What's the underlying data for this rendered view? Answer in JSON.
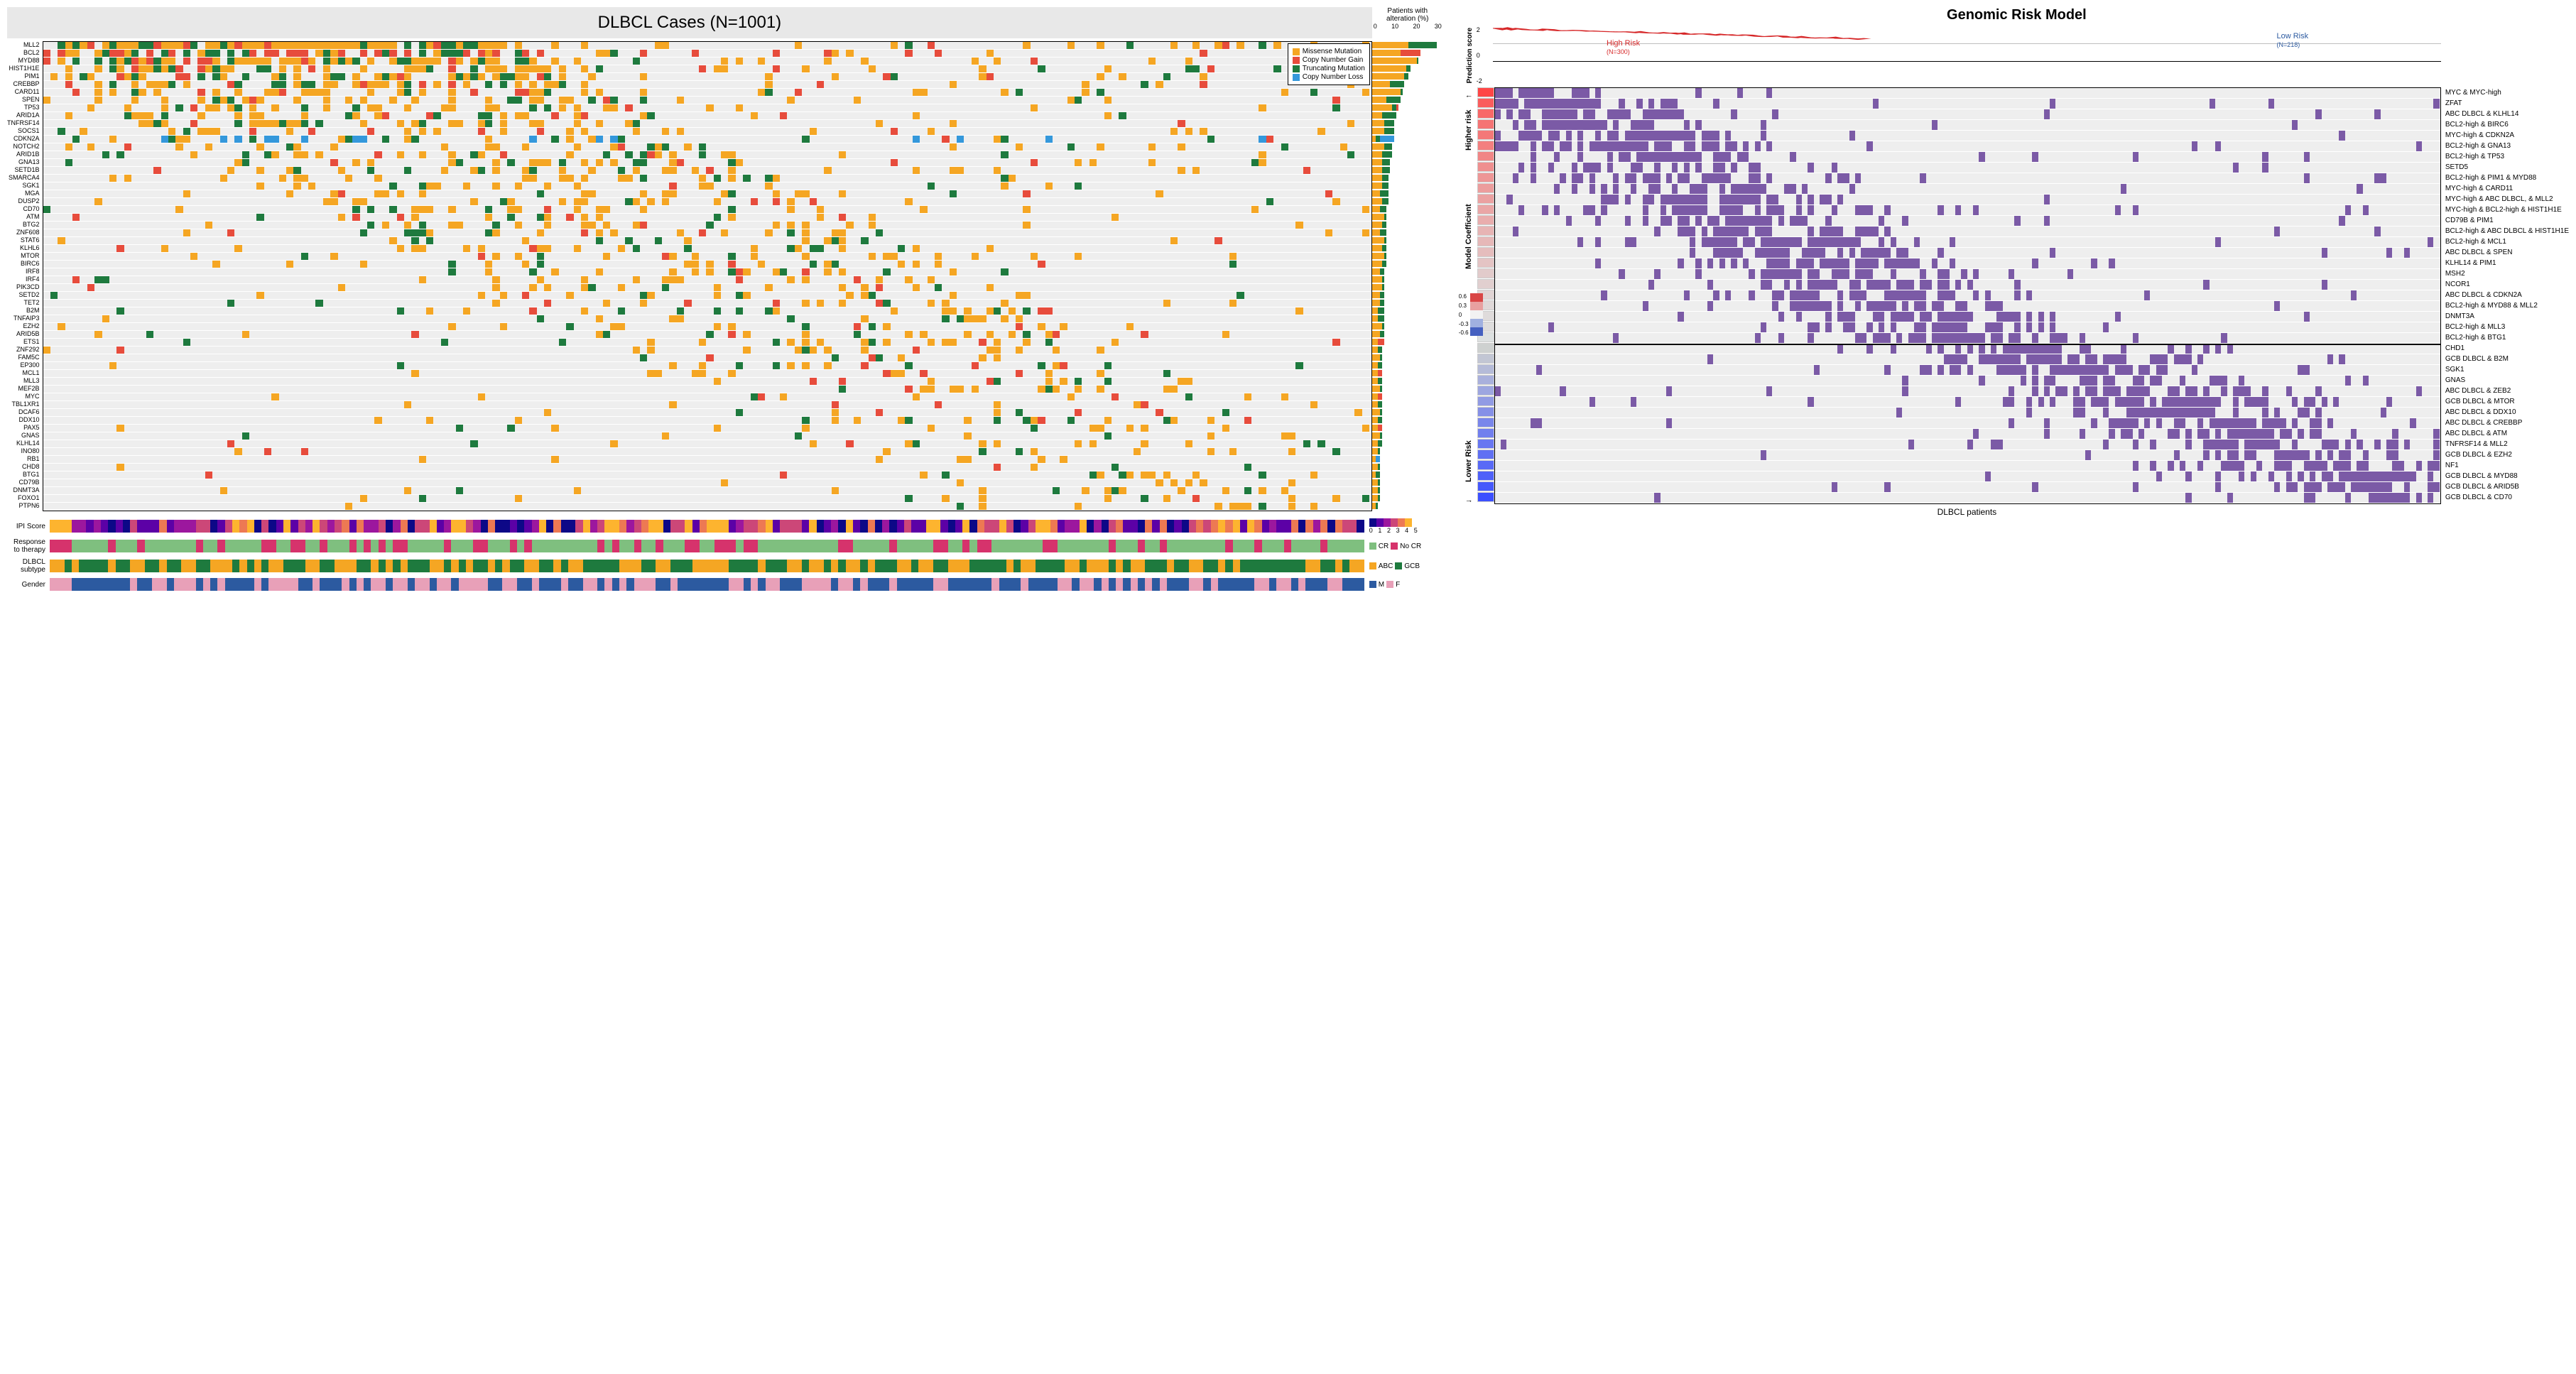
{
  "left": {
    "title": "DLBCL Cases (N=1001)",
    "genes": [
      "MLL2",
      "BCL2",
      "MYD88",
      "HIST1H1E",
      "PIM1",
      "CREBBP",
      "CARD11",
      "SPEN",
      "TP53",
      "ARID1A",
      "TNFRSF14",
      "SOCS1",
      "CDKN2A",
      "NOTCH2",
      "ARID1B",
      "GNA13",
      "SETD1B",
      "SMARCA4",
      "SGK1",
      "MGA",
      "DUSP2",
      "CD70",
      "ATM",
      "BTG2",
      "ZNF608",
      "STAT6",
      "KLHL6",
      "MTOR",
      "BIRC6",
      "IRF8",
      "IRF4",
      "PIK3CD",
      "SETD2",
      "TET2",
      "B2M",
      "TNFAIP3",
      "EZH2",
      "ARID5B",
      "ETS1",
      "ZNF292",
      "FAM5C",
      "EP300",
      "MCL1",
      "MLL3",
      "MEF2B",
      "MYC",
      "TBL1XR1",
      "DCAF6",
      "DDX10",
      "PAX5",
      "GNAS",
      "KLHL14",
      "INO80",
      "RB1",
      "CHD8",
      "BTG1",
      "CD79B",
      "DNMT3A",
      "FOXO1",
      "PTPN6"
    ],
    "legend": {
      "missense": {
        "label": "Missense Mutation",
        "color": "#f5a623"
      },
      "cngain": {
        "label": "Copy Number Gain",
        "color": "#e74c3c"
      },
      "trunc": {
        "label": "Truncating Mutation",
        "color": "#1e7a3e"
      },
      "cnloss": {
        "label": "Copy Number Loss",
        "color": "#3498db"
      }
    },
    "pct_header": "Patients with alteration (%)",
    "pct_ticks": [
      "0",
      "10",
      "20",
      "30"
    ],
    "pct_max": 35,
    "pct_data": [
      {
        "missense": 18,
        "trunc": 14,
        "cnloss": 0,
        "cngain": 0
      },
      {
        "missense": 14,
        "trunc": 0,
        "cnloss": 0,
        "cngain": 10
      },
      {
        "missense": 22,
        "trunc": 1,
        "cnloss": 0,
        "cngain": 0
      },
      {
        "missense": 17,
        "trunc": 2,
        "cnloss": 0,
        "cngain": 0
      },
      {
        "missense": 16,
        "trunc": 2,
        "cnloss": 0,
        "cngain": 0
      },
      {
        "missense": 9,
        "trunc": 7,
        "cnloss": 0,
        "cngain": 0
      },
      {
        "missense": 14,
        "trunc": 1,
        "cnloss": 0,
        "cngain": 0
      },
      {
        "missense": 7,
        "trunc": 7,
        "cnloss": 0,
        "cngain": 0
      },
      {
        "missense": 10,
        "trunc": 2,
        "cnloss": 0,
        "cngain": 1
      },
      {
        "missense": 5,
        "trunc": 7,
        "cnloss": 0,
        "cngain": 0
      },
      {
        "missense": 6,
        "trunc": 5,
        "cnloss": 0,
        "cngain": 0
      },
      {
        "missense": 6,
        "trunc": 5,
        "cnloss": 0,
        "cngain": 0
      },
      {
        "missense": 2,
        "trunc": 2,
        "cnloss": 7,
        "cngain": 0
      },
      {
        "missense": 6,
        "trunc": 4,
        "cnloss": 0,
        "cngain": 0
      },
      {
        "missense": 5,
        "trunc": 5,
        "cnloss": 0,
        "cngain": 0
      },
      {
        "missense": 5,
        "trunc": 4,
        "cnloss": 0,
        "cngain": 0
      },
      {
        "missense": 5,
        "trunc": 4,
        "cnloss": 0,
        "cngain": 0
      },
      {
        "missense": 5,
        "trunc": 3,
        "cnloss": 0,
        "cngain": 0
      },
      {
        "missense": 5,
        "trunc": 3,
        "cnloss": 0,
        "cngain": 0
      },
      {
        "missense": 4,
        "trunc": 4,
        "cnloss": 0,
        "cngain": 0
      },
      {
        "missense": 5,
        "trunc": 3,
        "cnloss": 0,
        "cngain": 0
      },
      {
        "missense": 4,
        "trunc": 3,
        "cnloss": 0,
        "cngain": 0
      },
      {
        "missense": 6,
        "trunc": 1,
        "cnloss": 0,
        "cngain": 0
      },
      {
        "missense": 5,
        "trunc": 2,
        "cnloss": 0,
        "cngain": 0
      },
      {
        "missense": 4,
        "trunc": 3,
        "cnloss": 0,
        "cngain": 0
      },
      {
        "missense": 6,
        "trunc": 1,
        "cnloss": 0,
        "cngain": 0
      },
      {
        "missense": 5,
        "trunc": 2,
        "cnloss": 0,
        "cngain": 0
      },
      {
        "missense": 6,
        "trunc": 1,
        "cnloss": 0,
        "cngain": 0
      },
      {
        "missense": 5,
        "trunc": 2,
        "cnloss": 0,
        "cngain": 0
      },
      {
        "missense": 4,
        "trunc": 2,
        "cnloss": 0,
        "cngain": 0
      },
      {
        "missense": 5,
        "trunc": 1,
        "cnloss": 0,
        "cngain": 0
      },
      {
        "missense": 5,
        "trunc": 1,
        "cnloss": 0,
        "cngain": 0
      },
      {
        "missense": 4,
        "trunc": 2,
        "cnloss": 0,
        "cngain": 0
      },
      {
        "missense": 4,
        "trunc": 2,
        "cnloss": 0,
        "cngain": 0
      },
      {
        "missense": 3,
        "trunc": 3,
        "cnloss": 0,
        "cngain": 0
      },
      {
        "missense": 3,
        "trunc": 3,
        "cnloss": 0,
        "cngain": 0
      },
      {
        "missense": 5,
        "trunc": 1,
        "cnloss": 0,
        "cngain": 0
      },
      {
        "missense": 4,
        "trunc": 2,
        "cnloss": 0,
        "cngain": 0
      },
      {
        "missense": 3,
        "trunc": 0,
        "cnloss": 0,
        "cngain": 3
      },
      {
        "missense": 3,
        "trunc": 2,
        "cnloss": 0,
        "cngain": 0
      },
      {
        "missense": 4,
        "trunc": 1,
        "cnloss": 0,
        "cngain": 0
      },
      {
        "missense": 3,
        "trunc": 2,
        "cnloss": 0,
        "cngain": 0
      },
      {
        "missense": 3,
        "trunc": 0,
        "cnloss": 0,
        "cngain": 2
      },
      {
        "missense": 3,
        "trunc": 2,
        "cnloss": 0,
        "cngain": 0
      },
      {
        "missense": 4,
        "trunc": 1,
        "cnloss": 0,
        "cngain": 0
      },
      {
        "missense": 3,
        "trunc": 0,
        "cnloss": 0,
        "cngain": 2
      },
      {
        "missense": 3,
        "trunc": 2,
        "cnloss": 0,
        "cngain": 0
      },
      {
        "missense": 4,
        "trunc": 1,
        "cnloss": 0,
        "cngain": 0
      },
      {
        "missense": 3,
        "trunc": 2,
        "cnloss": 0,
        "cngain": 0
      },
      {
        "missense": 3,
        "trunc": 0,
        "cnloss": 0,
        "cngain": 2
      },
      {
        "missense": 4,
        "trunc": 1,
        "cnloss": 0,
        "cngain": 0
      },
      {
        "missense": 3,
        "trunc": 2,
        "cnloss": 0,
        "cngain": 0
      },
      {
        "missense": 3,
        "trunc": 1,
        "cnloss": 0,
        "cngain": 0
      },
      {
        "missense": 2,
        "trunc": 0,
        "cnloss": 2,
        "cngain": 0
      },
      {
        "missense": 3,
        "trunc": 1,
        "cnloss": 0,
        "cngain": 0
      },
      {
        "missense": 2,
        "trunc": 2,
        "cnloss": 0,
        "cngain": 0
      },
      {
        "missense": 3,
        "trunc": 1,
        "cnloss": 0,
        "cngain": 0
      },
      {
        "missense": 3,
        "trunc": 1,
        "cnloss": 0,
        "cngain": 0
      },
      {
        "missense": 3,
        "trunc": 1,
        "cnloss": 0,
        "cngain": 0
      },
      {
        "missense": 2,
        "trunc": 1,
        "cnloss": 0,
        "cngain": 0
      }
    ],
    "clinical": {
      "ipi": {
        "label": "IPI Score",
        "colors": [
          "#0d0887",
          "#5c01a6",
          "#9c179e",
          "#cc4778",
          "#ed7953",
          "#fdb42f"
        ],
        "ticks": "0 1 2 3 4 5"
      },
      "response": {
        "label": "Response to therapy",
        "cr": {
          "label": "CR",
          "color": "#7fbf7f"
        },
        "nocr": {
          "label": "No CR",
          "color": "#d6336c"
        }
      },
      "subtype": {
        "label": "DLBCL subtype",
        "abc": {
          "label": "ABC",
          "color": "#f5a623"
        },
        "gcb": {
          "label": "GCB",
          "color": "#1e7a3e"
        }
      },
      "gender": {
        "label": "Gender",
        "m": {
          "label": "M",
          "color": "#2c5aa0"
        },
        "f": {
          "label": "F",
          "color": "#e8a0b8"
        }
      }
    }
  },
  "right": {
    "title": "Genomic Risk Model",
    "pred_label": "Prediction score",
    "pred_yticks": [
      "2",
      "0",
      "-2"
    ],
    "high_risk": {
      "label": "High Risk",
      "n": "(N=300)",
      "color": "#d62728"
    },
    "low_risk": {
      "label": "Low Risk",
      "n": "(N=218)",
      "color": "#2c5aa0"
    },
    "mid_color": "#aaaaaa",
    "coef_label": "Model Coefficient",
    "higher_label": "Higher risk",
    "lower_label": "Lower Risk",
    "x_label": "DLBCL patients",
    "coef_legend_ticks": [
      "0.6",
      "0.3",
      "0",
      "-0.3",
      "-0.6"
    ],
    "features": [
      {
        "name": "MYC & MYC-high",
        "coef": 0.7
      },
      {
        "name": "ZFAT",
        "coef": 0.6
      },
      {
        "name": "ABC DLBCL & KLHL14",
        "coef": 0.55
      },
      {
        "name": "BCL2-high & BIRC6",
        "coef": 0.5
      },
      {
        "name": "MYC-high & CDKN2A",
        "coef": 0.48
      },
      {
        "name": "BCL2-high & GNA13",
        "coef": 0.45
      },
      {
        "name": "BCL2-high & TP53",
        "coef": 0.42
      },
      {
        "name": "SETD5",
        "coef": 0.38
      },
      {
        "name": "BCL2-high & PIM1 & MYD88",
        "coef": 0.35
      },
      {
        "name": "MYC-high & CARD11",
        "coef": 0.32
      },
      {
        "name": "MYC-high & ABC DLBCL, & MLL2",
        "coef": 0.3
      },
      {
        "name": "MYC-high & BCL2-high & HIST1H1E",
        "coef": 0.28
      },
      {
        "name": "CD79B & PIM1",
        "coef": 0.25
      },
      {
        "name": "BCL2-high & ABC DLBCL & HIST1H1E",
        "coef": 0.22
      },
      {
        "name": "BCL2-high & MCL1",
        "coef": 0.2
      },
      {
        "name": "ABC DLBCL & SPEN",
        "coef": 0.18
      },
      {
        "name": "KLHL14 & PIM1",
        "coef": 0.15
      },
      {
        "name": "MSH2",
        "coef": 0.12
      },
      {
        "name": "NCOR1",
        "coef": 0.1
      },
      {
        "name": "ABC DLBCL & CDKN2A",
        "coef": 0.08
      },
      {
        "name": "BCL2-high & MYD88 & MLL2",
        "coef": 0.06
      },
      {
        "name": "DNMT3A",
        "coef": 0.05
      },
      {
        "name": "BCL2-high & MLL3",
        "coef": 0.04
      },
      {
        "name": "BCL2-high & BTG1",
        "coef": 0.02
      },
      {
        "name": "CHD1",
        "coef": -0.1
      },
      {
        "name": "GCB DLBCL & B2M",
        "coef": -0.15
      },
      {
        "name": "SGK1",
        "coef": -0.2
      },
      {
        "name": "GNAS",
        "coef": -0.25
      },
      {
        "name": "ABC DLBCL & ZEB2",
        "coef": -0.3
      },
      {
        "name": "GCB DLBCL & MTOR",
        "coef": -0.35
      },
      {
        "name": "ABC DLBCL & DDX10",
        "coef": -0.4
      },
      {
        "name": "ABC DLBCL & CREBBP",
        "coef": -0.45
      },
      {
        "name": "ABC DLBCL & ATM",
        "coef": -0.48
      },
      {
        "name": "TNFRSF14 & MLL2",
        "coef": -0.52
      },
      {
        "name": "GCB DLBCL & EZH2",
        "coef": -0.55
      },
      {
        "name": "NF1",
        "coef": -0.58
      },
      {
        "name": "GCB DLBCL & MYD88",
        "coef": -0.62
      },
      {
        "name": "GCB DLBCL & ARID5B",
        "coef": -0.66
      },
      {
        "name": "GCB DLBCL & CD70",
        "coef": -0.7
      }
    ],
    "divider_after": 24,
    "heatmap_color": "#7b5aa6"
  }
}
